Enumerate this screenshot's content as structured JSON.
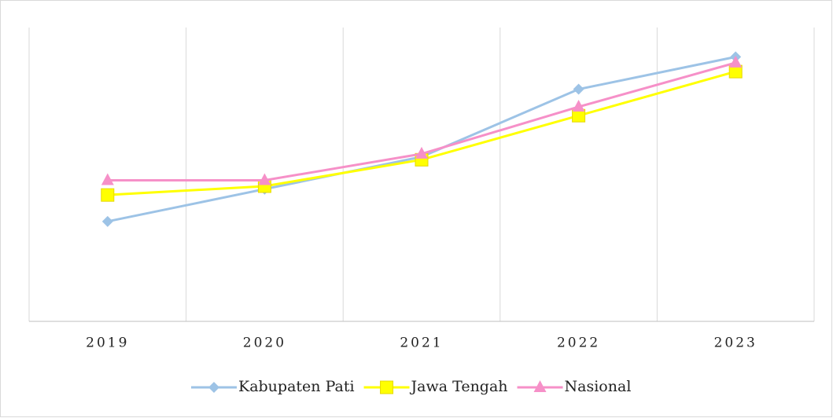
{
  "chart_data": {
    "type": "line",
    "categories": [
      "2019",
      "2020",
      "2021",
      "2022",
      "2023"
    ],
    "series": [
      {
        "name": "Kabupaten Pati",
        "color": "#9dc3e6",
        "marker": "diamond",
        "values": [
          34,
          45,
          56,
          79,
          90
        ]
      },
      {
        "name": "Jawa Tengah",
        "color": "#ffff00",
        "marker": "square",
        "values": [
          43,
          46,
          55,
          70,
          85
        ]
      },
      {
        "name": "Nasional",
        "color": "#f690c8",
        "marker": "triangle",
        "values": [
          48,
          48,
          57,
          73,
          88
        ]
      }
    ],
    "ylim": [
      0,
      100
    ],
    "grid": true,
    "legend": "bottom"
  }
}
